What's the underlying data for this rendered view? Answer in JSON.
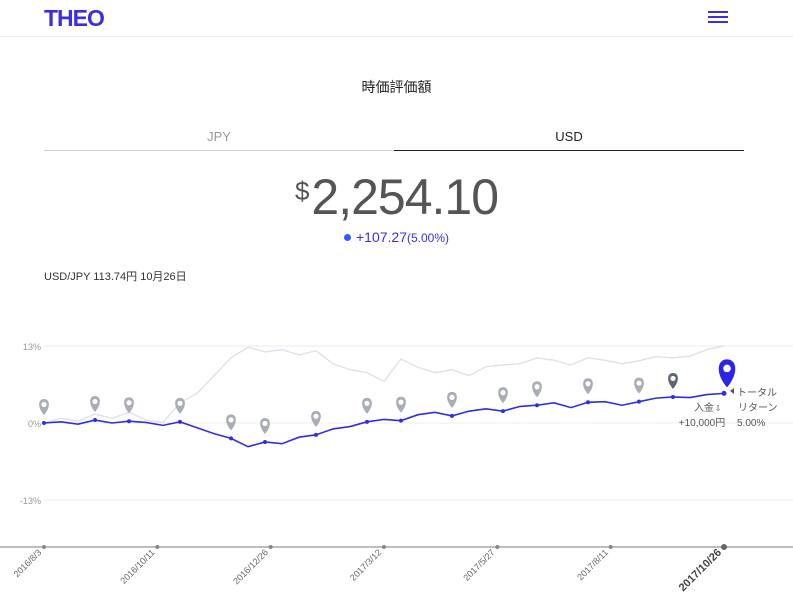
{
  "header": {
    "logo": "THEO",
    "menu_icon": "hamburger-menu-icon"
  },
  "page_title": "時価評価額",
  "tabs": [
    {
      "label": "JPY",
      "active": false
    },
    {
      "label": "USD",
      "active": true
    }
  ],
  "valuation": {
    "currency_symbol": "$",
    "amount": "2,254.10",
    "change": "+107.27",
    "change_pct": "(5.00%)"
  },
  "fx_rate": "USD/JPY 113.74円 10月26日",
  "colors": {
    "accent": "#3b2fe0",
    "line": "#2f2fe0",
    "benchmark": "#dde0ea",
    "pin": "#a9adb5",
    "dark_pin": "#5f6572"
  },
  "chart_data": {
    "type": "line",
    "ylim": [
      -13,
      13
    ],
    "y_tick_labels": [
      "13%",
      "0%",
      "-13%"
    ],
    "x_tick_labels": [
      "2016/8/3",
      "2016/10/11",
      "2016/12/26",
      "2017/3/12",
      "2017/5/27",
      "2017/8/11",
      "2017/10/26"
    ],
    "series": [
      {
        "values": [
          0.0,
          0.2,
          -0.2,
          0.5,
          0.0,
          0.3,
          0.1,
          -0.4,
          0.2,
          -0.8,
          -1.8,
          -2.6,
          -4.0,
          -3.2,
          -3.5,
          -2.4,
          -2.0,
          -1.0,
          -0.6,
          0.2,
          0.6,
          0.4,
          1.4,
          1.8,
          1.2,
          2.0,
          2.4,
          2.0,
          2.8,
          3.0,
          3.4,
          2.6,
          3.5,
          3.6,
          3.0,
          3.6,
          4.2,
          4.4,
          4.3,
          4.8,
          5.0
        ]
      },
      {
        "values": [
          0.0,
          0.8,
          0.3,
          1.5,
          0.8,
          1.8,
          0.5,
          0.1,
          3.4,
          5.0,
          8.0,
          11.0,
          12.8,
          12.0,
          12.4,
          11.5,
          12.2,
          10.0,
          9.0,
          8.5,
          7.0,
          10.8,
          9.4,
          8.5,
          9.0,
          8.0,
          9.5,
          9.8,
          10.0,
          11.0,
          10.6,
          9.8,
          11.0,
          10.6,
          10.0,
          10.5,
          11.2,
          11.0,
          11.3,
          12.4,
          13.0
        ]
      }
    ],
    "deposit_markers_count": 16,
    "latest_marker": {
      "deposit_label": "入金",
      "deposit_amount": "+10,000円",
      "return_label_1": "トータル",
      "return_label_2": "リターン",
      "return_value": "5.00%"
    }
  }
}
